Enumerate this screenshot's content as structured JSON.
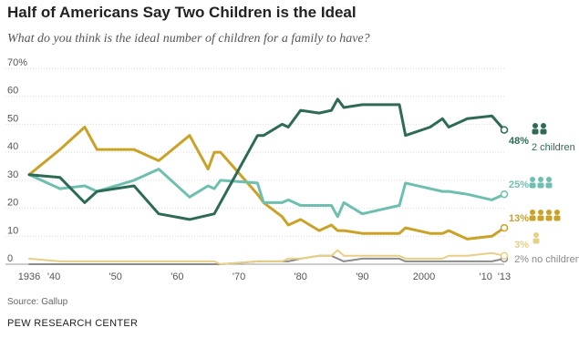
{
  "header": {
    "title": "Half of Americans Say Two Children is the Ideal",
    "subtitle": "What do you think is the ideal number of children for a family to have?"
  },
  "footer": {
    "source": "Source: Gallup",
    "org": "PEW RESEARCH CENTER"
  },
  "colors": {
    "two": "#2e6b57",
    "three": "#6fbfb0",
    "four": "#c9a227",
    "one": "#e8cf86",
    "none": "#8c8c8c",
    "grid": "#d9d9d9",
    "axis_text": "#555555"
  },
  "chart_data": {
    "type": "line",
    "title": "Half of Americans Say Two Children is the Ideal",
    "xlabel": "",
    "ylabel": "",
    "xlim": [
      1936,
      2013
    ],
    "ylim": [
      0,
      70
    ],
    "y_ticks": [
      0,
      10,
      20,
      30,
      40,
      50,
      60,
      70
    ],
    "y_tick_labels": [
      "0",
      "10",
      "20",
      "30",
      "40",
      "50",
      "60",
      "70%"
    ],
    "x_ticks": [
      1936,
      1940,
      1950,
      1960,
      1970,
      1980,
      1990,
      2000,
      2010,
      2013
    ],
    "x_tick_labels": [
      "1936",
      "'40",
      "'50",
      "'60",
      "'70",
      "'80",
      "'90",
      "2000",
      "'10",
      "'13"
    ],
    "grid": true,
    "series": [
      {
        "key": "two",
        "name": "2 children",
        "end_label": "48%",
        "icon": "two-children-icon",
        "x": [
          1936,
          1941,
          1945,
          1947,
          1953,
          1957,
          1962,
          1966,
          1973,
          1974,
          1977,
          1978,
          1980,
          1983,
          1985,
          1986,
          1987,
          1990,
          1996,
          1997,
          2001,
          2003,
          2004,
          2007,
          2011,
          2013
        ],
        "values": [
          32,
          31,
          22,
          26,
          28,
          18,
          16,
          18,
          46,
          46,
          50,
          49,
          55,
          54,
          55,
          59,
          56,
          57,
          57,
          46,
          49,
          52,
          49,
          52,
          53,
          48
        ]
      },
      {
        "key": "three",
        "name": "",
        "end_label": "25%",
        "icon": "three-children-icon",
        "x": [
          1936,
          1941,
          1945,
          1947,
          1953,
          1957,
          1962,
          1965,
          1966,
          1967,
          1973,
          1974,
          1977,
          1978,
          1980,
          1983,
          1985,
          1986,
          1987,
          1990,
          1996,
          1997,
          2001,
          2003,
          2004,
          2007,
          2011,
          2013
        ],
        "values": [
          32,
          27,
          28,
          26,
          30,
          34,
          24,
          28,
          27,
          30,
          29,
          22,
          22,
          23,
          21,
          21,
          21,
          17,
          22,
          18,
          21,
          29,
          27,
          26,
          26,
          25,
          23,
          25
        ]
      },
      {
        "key": "four",
        "name": "",
        "end_label": "13%",
        "icon": "four-plus-children-icon",
        "x": [
          1936,
          1941,
          1945,
          1947,
          1953,
          1957,
          1962,
          1965,
          1966,
          1967,
          1973,
          1974,
          1977,
          1978,
          1980,
          1983,
          1985,
          1986,
          1987,
          1990,
          1996,
          1997,
          2001,
          2003,
          2004,
          2007,
          2011,
          2013
        ],
        "values": [
          32,
          41,
          49,
          41,
          41,
          37,
          46,
          34,
          40,
          40,
          25,
          22,
          17,
          14,
          16,
          12,
          14,
          12,
          12,
          11,
          11,
          13,
          11,
          11,
          12,
          9,
          10,
          13
        ]
      },
      {
        "key": "one",
        "name": "",
        "end_label": "3%",
        "icon": "one-child-icon",
        "x": [
          1936,
          1941,
          1945,
          1947,
          1953,
          1957,
          1962,
          1966,
          1967,
          1973,
          1974,
          1977,
          1978,
          1980,
          1983,
          1985,
          1986,
          1987,
          1990,
          1996,
          1997,
          2001,
          2003,
          2004,
          2007,
          2011,
          2013
        ],
        "values": [
          2,
          1,
          1,
          1,
          1,
          1,
          1,
          1,
          0,
          1,
          1,
          1,
          2,
          2,
          3,
          3,
          5,
          3,
          3,
          3,
          2,
          2,
          2,
          3,
          3,
          4,
          3
        ]
      },
      {
        "key": "none",
        "name": "no children",
        "end_label": "2%",
        "icon": "",
        "x": [
          1936,
          1941,
          1945,
          1947,
          1953,
          1957,
          1962,
          1966,
          1967,
          1973,
          1974,
          1977,
          1978,
          1980,
          1983,
          1985,
          1986,
          1987,
          1990,
          1996,
          1997,
          2001,
          2003,
          2004,
          2007,
          2011,
          2013
        ],
        "values": [
          0,
          0,
          0,
          0,
          0,
          0,
          0,
          0,
          0,
          1,
          1,
          1,
          1,
          2,
          3,
          3,
          2,
          1,
          2,
          2,
          1,
          1,
          1,
          1,
          1,
          1,
          2
        ]
      }
    ]
  }
}
